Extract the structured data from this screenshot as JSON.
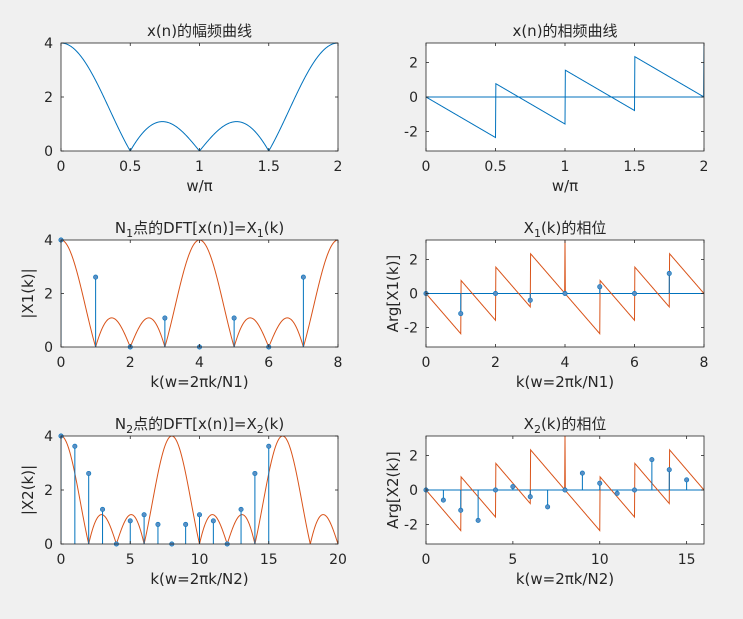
{
  "figure": {
    "background": "#f0f0f0",
    "axes_bg": "#ffffff",
    "axis_color": "#262626"
  },
  "colors": {
    "blue": "#0072BD",
    "orange": "#D95319"
  },
  "chart_data": [
    {
      "id": "p1",
      "type": "line",
      "title": "x(n)的幅频曲线",
      "title_parts": [
        {
          "t": "x(n)的幅频曲线"
        }
      ],
      "xlabel": "w/π",
      "ylabel": "",
      "xlim": [
        0,
        2
      ],
      "ylim": [
        0,
        4
      ],
      "xticks": [
        "0",
        "0.5",
        "1",
        "1.5",
        "2"
      ],
      "xtick_values": [
        0,
        0.5,
        1,
        1.5,
        2
      ],
      "yticks": [
        "0",
        "2",
        "4"
      ],
      "ytick_values": [
        0,
        2,
        4
      ],
      "series": [
        {
          "color": "#0072BD",
          "func": "mag",
          "scale": 1
        }
      ]
    },
    {
      "id": "p2",
      "type": "line",
      "title": "x(n)的相频曲线",
      "title_parts": [
        {
          "t": "x(n)的相频曲线"
        }
      ],
      "xlabel": "w/π",
      "ylabel": "",
      "xlim": [
        0,
        2
      ],
      "ylim": [
        -3.14,
        3.14
      ],
      "xticks": [
        "0",
        "0.5",
        "1",
        "1.5",
        "2"
      ],
      "xtick_values": [
        0,
        0.5,
        1,
        1.5,
        2
      ],
      "yticks": [
        "-2",
        "0",
        "2"
      ],
      "ytick_values": [
        -2,
        0,
        2
      ],
      "series": [
        {
          "color": "#0072BD",
          "func": "phase",
          "scale": 1
        }
      ],
      "hline": 0
    },
    {
      "id": "p3",
      "type": "stem",
      "title": "N1点的DFT[x(n)]=X1(k)",
      "title_parts": [
        {
          "t": "N"
        },
        {
          "t": "1",
          "sub": true
        },
        {
          "t": "点的DFT[x(n)]=X"
        },
        {
          "t": "1",
          "sub": true
        },
        {
          "t": "(k)"
        }
      ],
      "xlabel": "k(w=2πk/N1)",
      "ylabel": "|X1(k)|",
      "xlim": [
        0,
        8
      ],
      "ylim": [
        0,
        4
      ],
      "xticks": [
        "0",
        "2",
        "4",
        "6",
        "8"
      ],
      "xtick_values": [
        0,
        2,
        4,
        6,
        8
      ],
      "yticks": [
        "0",
        "2",
        "4"
      ],
      "ytick_values": [
        0,
        2,
        4
      ],
      "curve": {
        "color": "#D95319",
        "func": "mag",
        "scale": 4
      },
      "stems": {
        "color": "#0072BD",
        "k": [
          0,
          1,
          2,
          3,
          4,
          5,
          6,
          7
        ],
        "values": [
          4.0,
          2.613,
          0.0,
          1.082,
          0.0,
          1.082,
          0.0,
          2.613
        ]
      }
    },
    {
      "id": "p4",
      "type": "stem",
      "title": "X1(k)的相位",
      "title_parts": [
        {
          "t": "X"
        },
        {
          "t": "1",
          "sub": true
        },
        {
          "t": "(k)的相位"
        }
      ],
      "xlabel": "k(w=2πk/N1)",
      "ylabel": "Arg[X1(k)]",
      "xlim": [
        0,
        8
      ],
      "ylim": [
        -3.14,
        3.14
      ],
      "xticks": [
        "0",
        "2",
        "4",
        "6",
        "8"
      ],
      "xtick_values": [
        0,
        2,
        4,
        6,
        8
      ],
      "yticks": [
        "-2",
        "0",
        "2"
      ],
      "ytick_values": [
        -2,
        0,
        2
      ],
      "curve": {
        "color": "#D95319",
        "func": "phase",
        "scale": 4
      },
      "stems": {
        "color": "#0072BD",
        "k": [
          0,
          1,
          2,
          3,
          4,
          5,
          6,
          7
        ],
        "values": [
          0.0,
          -1.178,
          0.0,
          -0.393,
          0.0,
          0.393,
          0.0,
          1.178
        ]
      },
      "hline": 0
    },
    {
      "id": "p5",
      "type": "stem",
      "title": "N2点的DFT[x(n)]=X2(k)",
      "title_parts": [
        {
          "t": "N"
        },
        {
          "t": "2",
          "sub": true
        },
        {
          "t": "点的DFT[x(n)]=X"
        },
        {
          "t": "2",
          "sub": true
        },
        {
          "t": "(k)"
        }
      ],
      "xlabel": "k(w=2πk/N2)",
      "ylabel": "|X2(k)|",
      "xlim": [
        0,
        20
      ],
      "ylim": [
        0,
        4
      ],
      "xticks": [
        "0",
        "5",
        "10",
        "15",
        "20"
      ],
      "xtick_values": [
        0,
        5,
        10,
        15,
        20
      ],
      "yticks": [
        "0",
        "2",
        "4"
      ],
      "ytick_values": [
        0,
        2,
        4
      ],
      "curve": {
        "color": "#D95319",
        "func": "mag",
        "scale": 8
      },
      "stems": {
        "color": "#0072BD",
        "k": [
          0,
          1,
          2,
          3,
          4,
          5,
          6,
          7,
          8,
          9,
          10,
          11,
          12,
          13,
          14,
          15
        ],
        "values": [
          4.0,
          3.62,
          2.613,
          1.281,
          0.0,
          0.856,
          1.082,
          0.725,
          0.0,
          0.725,
          1.082,
          0.856,
          0.0,
          1.281,
          2.613,
          3.62
        ]
      }
    },
    {
      "id": "p6",
      "type": "stem",
      "title": "X2(k)的相位",
      "title_parts": [
        {
          "t": "X"
        },
        {
          "t": "2",
          "sub": true
        },
        {
          "t": "(k)的相位"
        }
      ],
      "xlabel": "k(w=2πk/N2)",
      "ylabel": "Arg[X2(k)]",
      "xlim": [
        0,
        16
      ],
      "ylim": [
        -3.14,
        3.14
      ],
      "xticks": [
        "0",
        "5",
        "10",
        "15"
      ],
      "xtick_values": [
        0,
        5,
        10,
        15
      ],
      "yticks": [
        "-2",
        "0",
        "2"
      ],
      "ytick_values": [
        -2,
        0,
        2
      ],
      "curve": {
        "color": "#D95319",
        "func": "phase",
        "scale": 8
      },
      "stems": {
        "color": "#0072BD",
        "k": [
          0,
          1,
          2,
          3,
          4,
          5,
          6,
          7,
          8,
          9,
          10,
          11,
          12,
          13,
          14,
          15
        ],
        "values": [
          0.0,
          -0.589,
          -1.178,
          -1.767,
          0.0,
          0.196,
          -0.393,
          -0.982,
          0.0,
          0.982,
          0.393,
          -0.196,
          0.0,
          1.767,
          1.178,
          0.589
        ]
      },
      "hline": 0
    }
  ]
}
